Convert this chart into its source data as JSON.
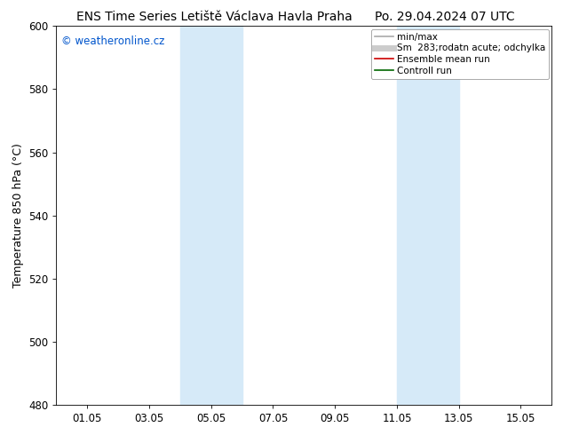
{
  "title_left": "ENS Time Series Letiště Václava Havla Praha",
  "title_right": "Po. 29.04.2024 07 UTC",
  "ylabel": "Temperature 850 hPa (°C)",
  "watermark": "© weatheronline.cz",
  "watermark_color": "#0055cc",
  "ylim": [
    480,
    600
  ],
  "yticks": [
    480,
    500,
    520,
    540,
    560,
    580,
    600
  ],
  "xtick_labels": [
    "01.05",
    "03.05",
    "05.05",
    "07.05",
    "09.05",
    "11.05",
    "13.05",
    "15.05"
  ],
  "xtick_positions": [
    1,
    3,
    5,
    7,
    9,
    11,
    13,
    15
  ],
  "xlim": [
    0,
    16
  ],
  "shaded_bands": [
    {
      "xstart": 4.0,
      "xend": 6.0
    },
    {
      "xstart": 11.0,
      "xend": 13.0
    }
  ],
  "shaded_color": "#d6eaf8",
  "bg_color": "#ffffff",
  "plot_bg_color": "#ffffff",
  "legend_entries": [
    {
      "label": "min/max",
      "color": "#aaaaaa",
      "lw": 1.2,
      "linestyle": "-"
    },
    {
      "label": "Sm  283;rodatn acute; odchylka",
      "color": "#cccccc",
      "lw": 5,
      "linestyle": "-"
    },
    {
      "label": "Ensemble mean run",
      "color": "#cc0000",
      "lw": 1.2,
      "linestyle": "-"
    },
    {
      "label": "Controll run",
      "color": "#006600",
      "lw": 1.2,
      "linestyle": "-"
    }
  ],
  "title_fontsize": 10,
  "ylabel_fontsize": 9,
  "tick_fontsize": 8.5,
  "legend_fontsize": 7.5,
  "watermark_fontsize": 8.5
}
